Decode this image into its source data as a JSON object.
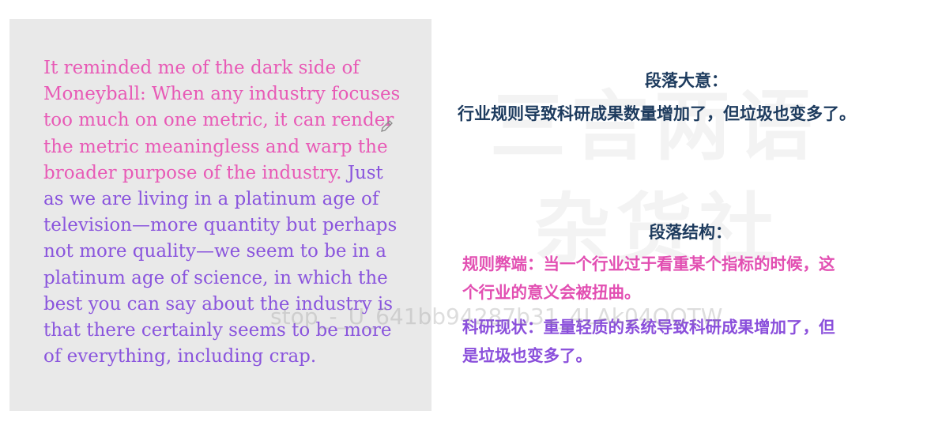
{
  "passage": {
    "pink_lines": [
      "It reminded me of the dark side of",
      "Moneyball: When any industry focuses",
      "too much on one metric, it can render",
      "the metric meaningless and warp the"
    ],
    "mixed_line_pink": "broader purpose of the industry.",
    "mixed_line_purple": " Just",
    "purple_lines": [
      "as we are living in a platinum age of",
      "television—more quantity but perhaps",
      "not more quality—we seem to be in a",
      "platinum age of science, in which the",
      "best you can say about the industry is",
      "that there certainly seems to be more",
      "of everything, including crap."
    ]
  },
  "summary": {
    "heading": "段落大意：",
    "text": "行业规则导致科研成果数量增加了，但垃圾也变多了。"
  },
  "structure": {
    "heading": "段落结构：",
    "item1_line1": "规则弊端：当一个行业过于看重某个指标的时候，这",
    "item1_line2": "个行业的意义会被扭曲。",
    "item2_line1": "科研现状：重量轻质的系统导致科研成果增加了，但",
    "item2_line2": "是垃圾也变多了。"
  },
  "watermark": {
    "line1": "三言两语",
    "line2": "杂货社",
    "id_text": "stop_-_U_641bb94287b31_4LAk04QOTW"
  },
  "colors": {
    "pink": "#e85ab6",
    "purple": "#8a55dd",
    "navy": "#1d3b5e",
    "panel": "#e9e9e9"
  }
}
